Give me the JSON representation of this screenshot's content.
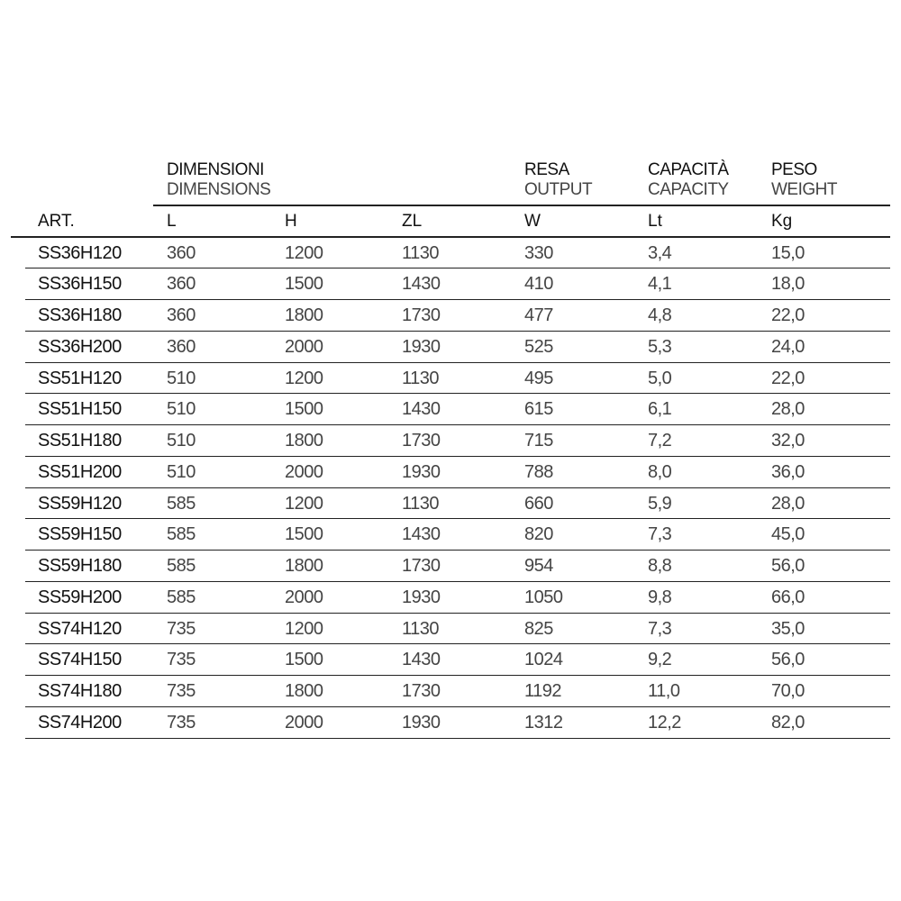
{
  "header": {
    "dimensions": {
      "it": "DIMENSIONI",
      "en": "DIMENSIONS"
    },
    "output": {
      "it": "RESA",
      "en": "OUTPUT"
    },
    "capacity": {
      "it": "CAPACITÀ",
      "en": "CAPACITY"
    },
    "weight": {
      "it": "PESO",
      "en": "WEIGHT"
    }
  },
  "columns": [
    "ART.",
    "L",
    "H",
    "ZL",
    "W",
    "Lt",
    "Kg"
  ],
  "rows": [
    [
      "SS36H120",
      "360",
      "1200",
      "1130",
      "330",
      "3,4",
      "15,0"
    ],
    [
      "SS36H150",
      "360",
      "1500",
      "1430",
      "410",
      "4,1",
      "18,0"
    ],
    [
      "SS36H180",
      "360",
      "1800",
      "1730",
      "477",
      "4,8",
      "22,0"
    ],
    [
      "SS36H200",
      "360",
      "2000",
      "1930",
      "525",
      "5,3",
      "24,0"
    ],
    [
      "SS51H120",
      "510",
      "1200",
      "1130",
      "495",
      "5,0",
      "22,0"
    ],
    [
      "SS51H150",
      "510",
      "1500",
      "1430",
      "615",
      "6,1",
      "28,0"
    ],
    [
      "SS51H180",
      "510",
      "1800",
      "1730",
      "715",
      "7,2",
      "32,0"
    ],
    [
      "SS51H200",
      "510",
      "2000",
      "1930",
      "788",
      "8,0",
      "36,0"
    ],
    [
      "SS59H120",
      "585",
      "1200",
      "1130",
      "660",
      "5,9",
      "28,0"
    ],
    [
      "SS59H150",
      "585",
      "1500",
      "1430",
      "820",
      "7,3",
      "45,0"
    ],
    [
      "SS59H180",
      "585",
      "1800",
      "1730",
      "954",
      "8,8",
      "56,0"
    ],
    [
      "SS59H200",
      "585",
      "2000",
      "1930",
      "1050",
      "9,8",
      "66,0"
    ],
    [
      "SS74H120",
      "735",
      "1200",
      "1130",
      "825",
      "7,3",
      "35,0"
    ],
    [
      "SS74H150",
      "735",
      "1500",
      "1430",
      "1024",
      "9,2",
      "56,0"
    ],
    [
      "SS74H180",
      "735",
      "1800",
      "1730",
      "1192",
      "11,0",
      "70,0"
    ],
    [
      "SS74H200",
      "735",
      "2000",
      "1930",
      "1312",
      "12,2",
      "82,0"
    ]
  ]
}
